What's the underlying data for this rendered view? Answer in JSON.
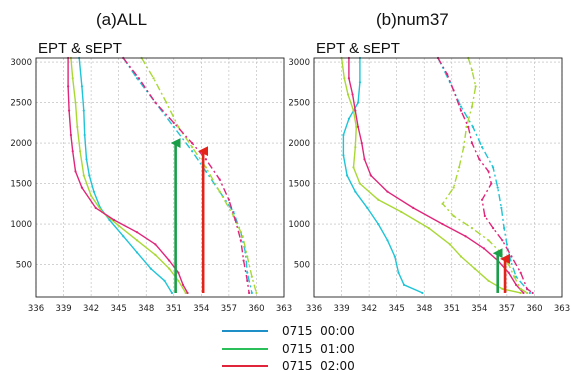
{
  "legend": [
    {
      "label": "0715  00:00",
      "color": "#1f8fc7"
    },
    {
      "label": "0715  01:00",
      "color": "#2bbf5a"
    },
    {
      "label": "0715  02:00",
      "color": "#e0253b"
    }
  ],
  "chart_data": [
    {
      "type": "line",
      "title": "(a)ALL",
      "subtitle": "EPT & sEPT",
      "xlim": [
        336,
        363
      ],
      "ylim": [
        100,
        3050
      ],
      "xticks": [
        336,
        339,
        342,
        345,
        348,
        351,
        354,
        357,
        360,
        363
      ],
      "yticks": [
        500,
        1000,
        1500,
        2000,
        2500,
        3000
      ],
      "grid": true,
      "series": [
        {
          "kind": "EPT",
          "time": "00:00",
          "color": "#1fc4d6",
          "dashed": false,
          "points": [
            [
              340.7,
              3050
            ],
            [
              341.0,
              2700
            ],
            [
              341.2,
              2400
            ],
            [
              341.3,
              2100
            ],
            [
              341.5,
              1800
            ],
            [
              341.8,
              1600
            ],
            [
              342.3,
              1400
            ],
            [
              343.0,
              1200
            ],
            [
              344.0,
              1050
            ],
            [
              345.5,
              850
            ],
            [
              347.0,
              650
            ],
            [
              348.5,
              450
            ],
            [
              350.0,
              300
            ],
            [
              350.8,
              150
            ]
          ]
        },
        {
          "kind": "EPT",
          "time": "01:00",
          "color": "#a9d835",
          "dashed": false,
          "points": [
            [
              339.8,
              3050
            ],
            [
              340.0,
              2800
            ],
            [
              340.3,
              2500
            ],
            [
              340.5,
              2200
            ],
            [
              340.8,
              1900
            ],
            [
              341.2,
              1600
            ],
            [
              342.0,
              1350
            ],
            [
              343.2,
              1150
            ],
            [
              345.0,
              980
            ],
            [
              347.0,
              800
            ],
            [
              349.0,
              620
            ],
            [
              350.5,
              450
            ],
            [
              351.5,
              300
            ],
            [
              352.3,
              150
            ]
          ]
        },
        {
          "kind": "EPT",
          "time": "02:00",
          "color": "#e0257a",
          "dashed": false,
          "points": [
            [
              339.5,
              3050
            ],
            [
              339.5,
              2700
            ],
            [
              339.6,
              2400
            ],
            [
              339.8,
              2100
            ],
            [
              340.0,
              1900
            ],
            [
              340.3,
              1650
            ],
            [
              341.0,
              1450
            ],
            [
              342.5,
              1200
            ],
            [
              344.5,
              1050
            ],
            [
              347.0,
              900
            ],
            [
              349.0,
              750
            ],
            [
              350.5,
              550
            ],
            [
              351.5,
              400
            ],
            [
              352.0,
              250
            ],
            [
              352.5,
              150
            ]
          ]
        },
        {
          "kind": "sEPT",
          "time": "00:00",
          "color": "#1fc4d6",
          "dashed": true,
          "points": [
            [
              345.5,
              3050
            ],
            [
              347.0,
              2800
            ],
            [
              349.0,
              2500
            ],
            [
              351.0,
              2200
            ],
            [
              353.0,
              1900
            ],
            [
              354.5,
              1650
            ],
            [
              356.0,
              1400
            ],
            [
              357.5,
              1150
            ],
            [
              358.3,
              900
            ],
            [
              358.8,
              650
            ],
            [
              359.0,
              400
            ],
            [
              359.5,
              150
            ]
          ]
        },
        {
          "kind": "sEPT",
          "time": "01:00",
          "color": "#a9d835",
          "dashed": true,
          "points": [
            [
              347.5,
              3050
            ],
            [
              348.8,
              2800
            ],
            [
              350.2,
              2500
            ],
            [
              351.5,
              2200
            ],
            [
              353.0,
              1950
            ],
            [
              354.5,
              1700
            ],
            [
              356.0,
              1400
            ],
            [
              357.5,
              1100
            ],
            [
              358.5,
              850
            ],
            [
              359.0,
              600
            ],
            [
              359.5,
              350
            ],
            [
              360.0,
              150
            ]
          ]
        },
        {
          "kind": "sEPT",
          "time": "02:00",
          "color": "#e0257a",
          "dashed": true,
          "points": [
            [
              345.5,
              3050
            ],
            [
              347.2,
              2800
            ],
            [
              349.0,
              2500
            ],
            [
              351.0,
              2250
            ],
            [
              353.0,
              2000
            ],
            [
              354.5,
              1800
            ],
            [
              356.0,
              1550
            ],
            [
              357.0,
              1300
            ],
            [
              357.7,
              1050
            ],
            [
              358.3,
              800
            ],
            [
              358.6,
              550
            ],
            [
              359.0,
              300
            ],
            [
              359.2,
              150
            ]
          ]
        }
      ],
      "arrows": [
        {
          "color": "#1a9e4a",
          "x": 351.2,
          "from": 150,
          "to": 2050
        },
        {
          "color": "#e2231a",
          "x": 354.2,
          "from": 150,
          "to": 1950
        }
      ]
    },
    {
      "type": "line",
      "title": "(b)num37",
      "subtitle": "EPT & sEPT",
      "xlim": [
        336,
        363
      ],
      "ylim": [
        100,
        3050
      ],
      "xticks": [
        336,
        339,
        342,
        345,
        348,
        351,
        354,
        357,
        360,
        363
      ],
      "yticks": [
        500,
        1000,
        1500,
        2000,
        2500,
        3000
      ],
      "grid": true,
      "series": [
        {
          "kind": "EPT",
          "time": "00:00",
          "color": "#1fc4d6",
          "dashed": false,
          "points": [
            [
              341.0,
              3050
            ],
            [
              341.0,
              2750
            ],
            [
              340.8,
              2500
            ],
            [
              339.8,
              2300
            ],
            [
              339.2,
              2100
            ],
            [
              339.2,
              1850
            ],
            [
              339.6,
              1600
            ],
            [
              340.5,
              1400
            ],
            [
              341.8,
              1200
            ],
            [
              343.0,
              1000
            ],
            [
              344.0,
              800
            ],
            [
              344.8,
              600
            ],
            [
              345.2,
              400
            ],
            [
              345.8,
              250
            ],
            [
              347.8,
              150
            ]
          ]
        },
        {
          "kind": "EPT",
          "time": "01:00",
          "color": "#a9d835",
          "dashed": false,
          "points": [
            [
              339.0,
              3050
            ],
            [
              339.3,
              2800
            ],
            [
              339.7,
              2600
            ],
            [
              340.3,
              2400
            ],
            [
              340.6,
              2200
            ],
            [
              340.5,
              1950
            ],
            [
              340.3,
              1700
            ],
            [
              341.0,
              1500
            ],
            [
              343.0,
              1300
            ],
            [
              345.5,
              1150
            ],
            [
              348.5,
              950
            ],
            [
              350.8,
              750
            ],
            [
              352.0,
              600
            ],
            [
              353.5,
              450
            ],
            [
              355.0,
              300
            ],
            [
              356.5,
              200
            ],
            [
              358.5,
              150
            ]
          ]
        },
        {
          "kind": "EPT",
          "time": "02:00",
          "color": "#e0257a",
          "dashed": false,
          "points": [
            [
              339.8,
              3050
            ],
            [
              339.8,
              2800
            ],
            [
              340.2,
              2600
            ],
            [
              340.5,
              2400
            ],
            [
              340.8,
              2200
            ],
            [
              341.2,
              2000
            ],
            [
              341.5,
              1800
            ],
            [
              342.2,
              1600
            ],
            [
              344.0,
              1400
            ],
            [
              346.8,
              1200
            ],
            [
              350.0,
              1000
            ],
            [
              352.5,
              850
            ],
            [
              354.5,
              700
            ],
            [
              356.0,
              550
            ],
            [
              357.2,
              400
            ],
            [
              358.0,
              250
            ],
            [
              358.8,
              150
            ]
          ]
        },
        {
          "kind": "sEPT",
          "time": "00:00",
          "color": "#1fc4d6",
          "dashed": true,
          "points": [
            [
              349.5,
              3050
            ],
            [
              350.8,
              2750
            ],
            [
              352.0,
              2450
            ],
            [
              353.3,
              2200
            ],
            [
              354.3,
              1950
            ],
            [
              355.5,
              1700
            ],
            [
              356.0,
              1450
            ],
            [
              356.4,
              1200
            ],
            [
              356.7,
              950
            ],
            [
              357.0,
              750
            ],
            [
              357.4,
              550
            ],
            [
              358.0,
              350
            ],
            [
              359.5,
              150
            ]
          ]
        },
        {
          "kind": "sEPT",
          "time": "01:00",
          "color": "#a9d835",
          "dashed": true,
          "points": [
            [
              352.8,
              3050
            ],
            [
              353.2,
              2900
            ],
            [
              353.6,
              2700
            ],
            [
              353.2,
              2450
            ],
            [
              352.6,
              2200
            ],
            [
              352.3,
              1950
            ],
            [
              351.8,
              1700
            ],
            [
              351.2,
              1450
            ],
            [
              350.0,
              1250
            ],
            [
              351.2,
              1100
            ],
            [
              353.2,
              950
            ],
            [
              355.0,
              800
            ],
            [
              356.3,
              650
            ],
            [
              357.2,
              500
            ],
            [
              357.8,
              350
            ],
            [
              358.5,
              200
            ],
            [
              359.2,
              150
            ]
          ]
        },
        {
          "kind": "sEPT",
          "time": "02:00",
          "color": "#e0257a",
          "dashed": true,
          "points": [
            [
              349.5,
              3050
            ],
            [
              350.5,
              2850
            ],
            [
              351.2,
              2650
            ],
            [
              352.0,
              2400
            ],
            [
              352.8,
              2200
            ],
            [
              353.2,
              2000
            ],
            [
              354.0,
              1800
            ],
            [
              355.0,
              1650
            ],
            [
              355.3,
              1500
            ],
            [
              354.3,
              1300
            ],
            [
              354.6,
              1100
            ],
            [
              355.5,
              950
            ],
            [
              356.5,
              800
            ],
            [
              357.5,
              600
            ],
            [
              358.5,
              400
            ],
            [
              359.2,
              200
            ],
            [
              359.8,
              150
            ]
          ]
        }
      ],
      "arrows": [
        {
          "color": "#1a9e4a",
          "x": 356.0,
          "from": 150,
          "to": 690
        },
        {
          "color": "#e2231a",
          "x": 356.8,
          "from": 150,
          "to": 620
        }
      ]
    }
  ]
}
